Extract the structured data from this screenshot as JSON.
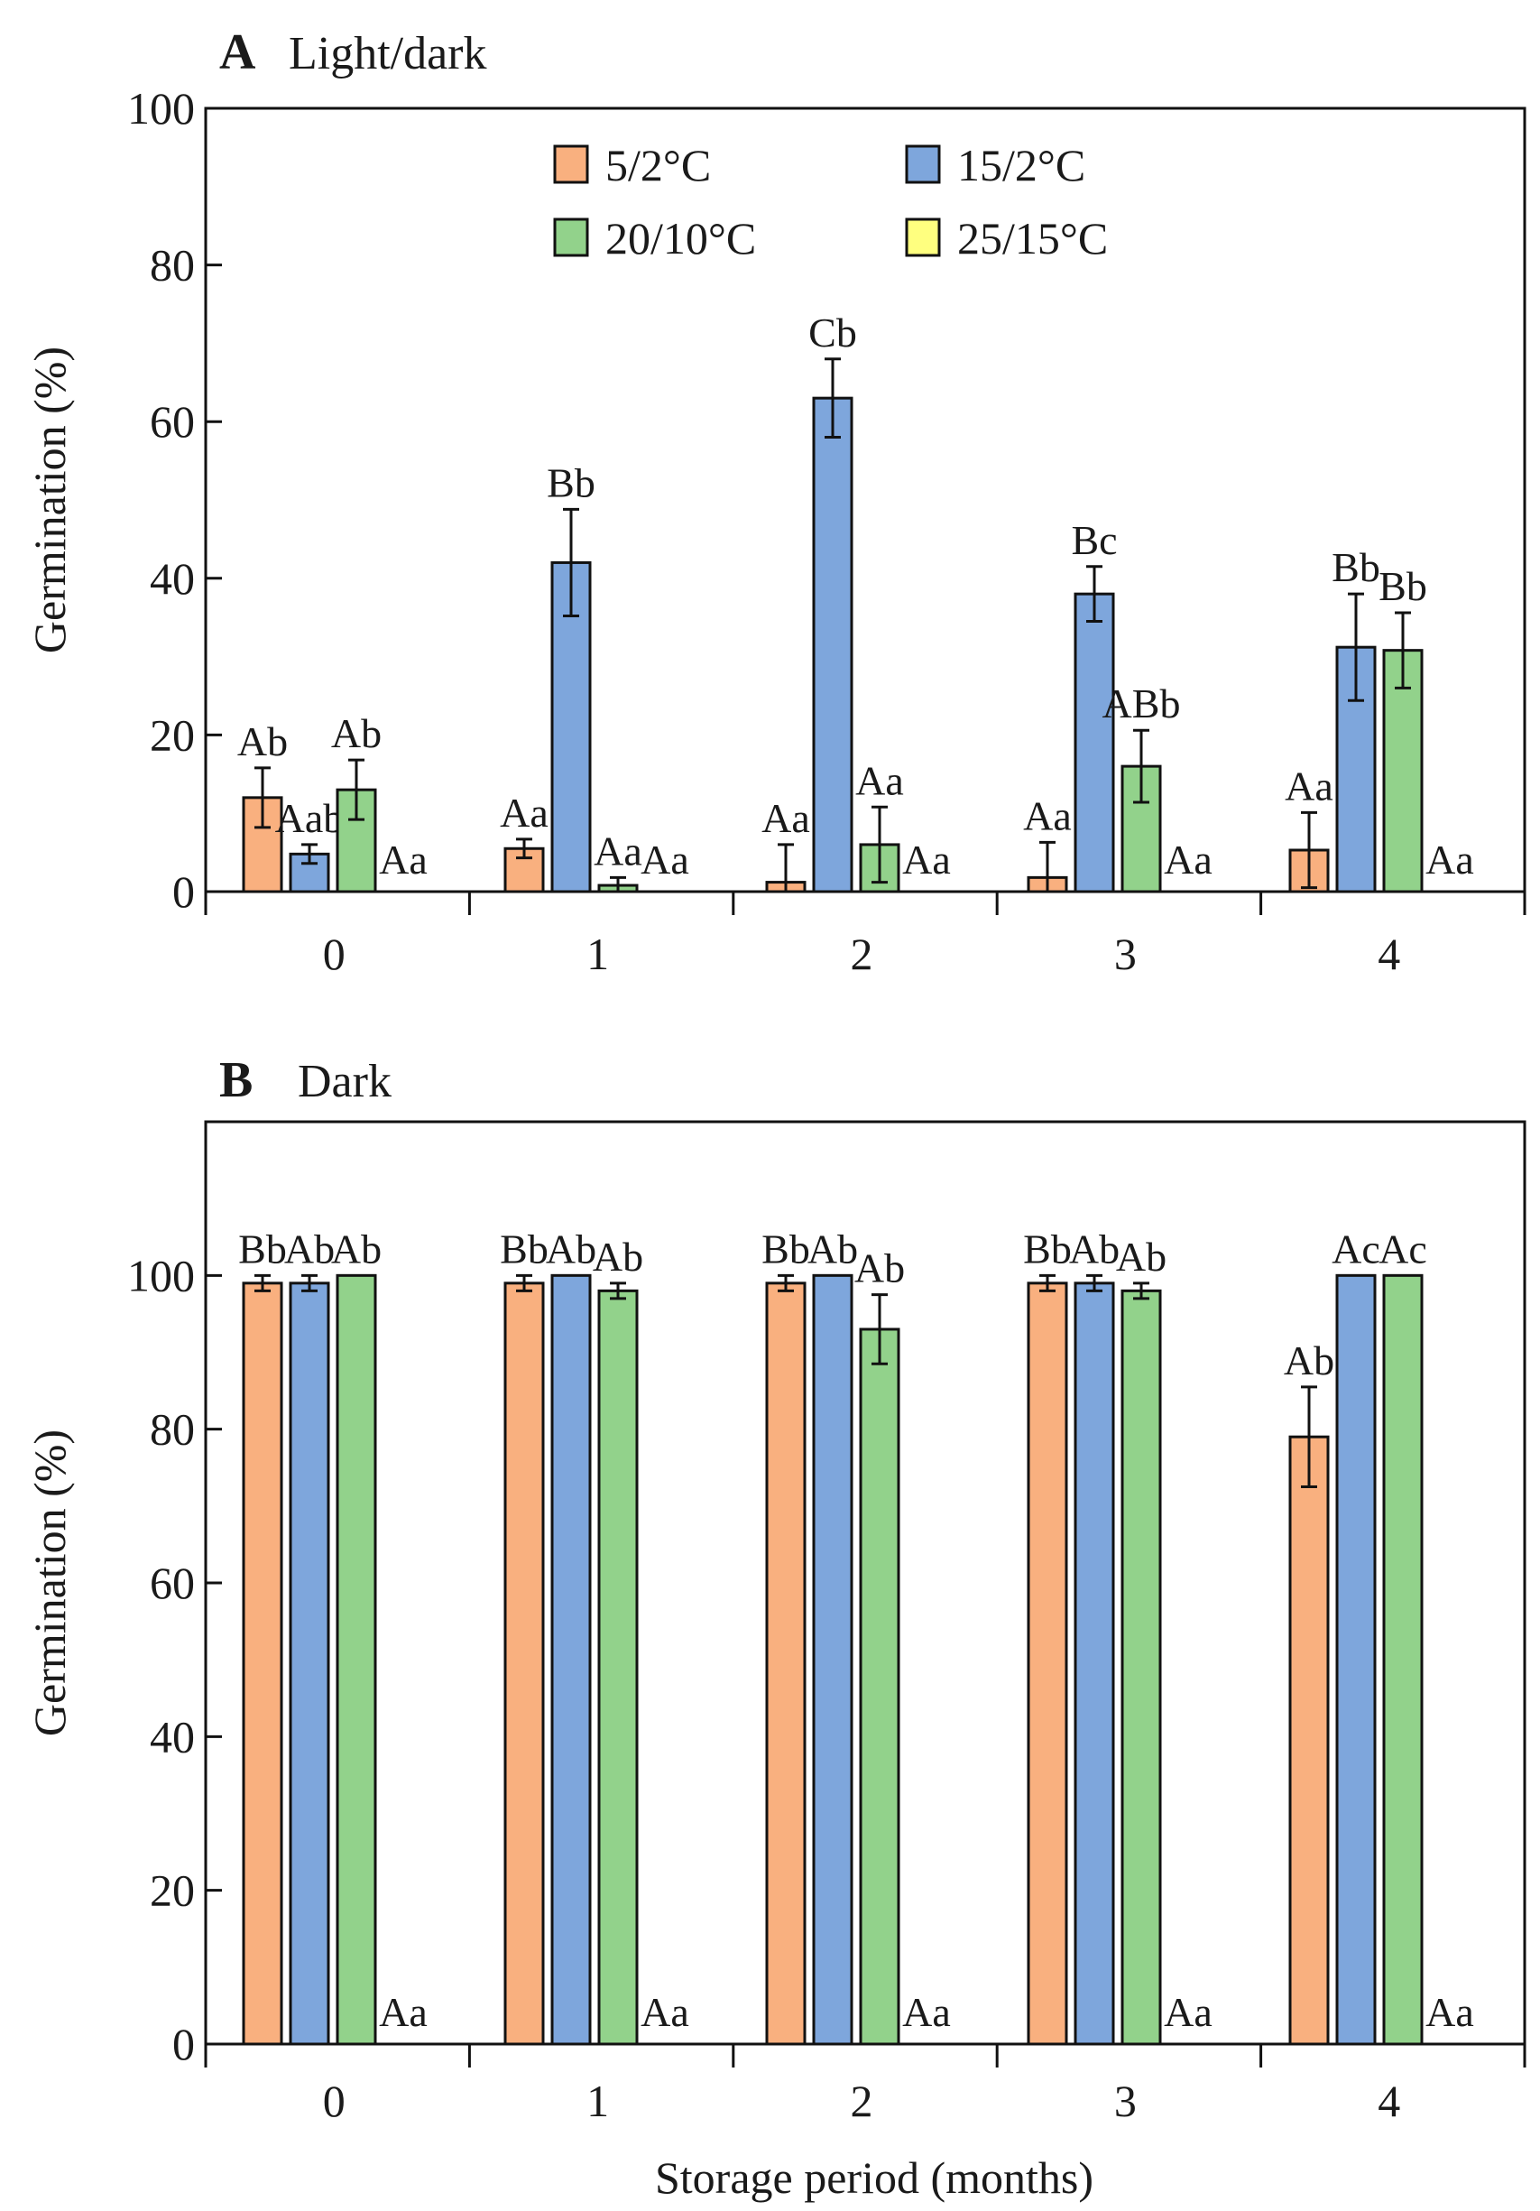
{
  "chart_data": [
    {
      "id": "panel-a",
      "type": "bar",
      "panel_letter": "A",
      "title": "Light/dark",
      "xlabel": "",
      "ylabel": "Germination (%)",
      "ylim": [
        0,
        100
      ],
      "yticks": [
        0,
        20,
        40,
        60,
        80,
        100
      ],
      "categories": [
        "0",
        "1",
        "2",
        "3",
        "4"
      ],
      "legend": {
        "placement": "top-center",
        "columns": 2
      },
      "series": [
        {
          "name": "5/2°C",
          "color": "#f9b07f",
          "values": [
            12,
            5.5,
            1.2,
            1.8,
            5.3
          ],
          "errors": [
            3.8,
            1.2,
            4.8,
            4.5,
            4.8
          ],
          "labels": [
            "Ab",
            "Aa",
            "Aa",
            "Aa",
            "Aa"
          ]
        },
        {
          "name": "15/2°C",
          "color": "#7ea6dc",
          "values": [
            4.8,
            42,
            63,
            38,
            31.2
          ],
          "errors": [
            1.2,
            6.8,
            5,
            3.5,
            6.8
          ],
          "labels": [
            "Aab",
            "Bb",
            "Cb",
            "Bc",
            "Bb"
          ]
        },
        {
          "name": "20/10°C",
          "color": "#92d28b",
          "values": [
            13,
            0.8,
            6,
            16,
            30.8
          ],
          "errors": [
            3.8,
            1,
            4.8,
            4.6,
            4.8
          ],
          "labels": [
            "Ab",
            "Aa",
            "Aa",
            "ABb",
            "Bb"
          ]
        },
        {
          "name": "25/15°C",
          "color": "#ffff7f",
          "values": [
            0,
            0,
            0,
            0,
            0
          ],
          "errors": [
            0,
            0,
            0,
            0,
            0
          ],
          "labels": [
            "Aa",
            "Aa",
            "Aa",
            "Aa",
            "Aa"
          ]
        }
      ]
    },
    {
      "id": "panel-b",
      "type": "bar",
      "panel_letter": "B",
      "title": "Dark",
      "xlabel": "Storage period (months)",
      "ylabel": "Germination (%)",
      "ylim": [
        0,
        120
      ],
      "yticks": [
        0,
        20,
        40,
        60,
        80,
        100
      ],
      "categories": [
        "0",
        "1",
        "2",
        "3",
        "4"
      ],
      "series": [
        {
          "name": "5/2°C",
          "color": "#f9b07f",
          "values": [
            99,
            99,
            99,
            99,
            79
          ],
          "errors": [
            1,
            1,
            1,
            1,
            6.5
          ],
          "labels": [
            "Bb",
            "Bb",
            "Bb",
            "Bb",
            "Ab"
          ]
        },
        {
          "name": "15/2°C",
          "color": "#7ea6dc",
          "values": [
            99,
            100,
            100,
            99,
            100
          ],
          "errors": [
            1,
            0,
            0,
            1,
            0
          ],
          "labels": [
            "Ab",
            "Ab",
            "Ab",
            "Ab",
            "Ac"
          ]
        },
        {
          "name": "20/10°C",
          "color": "#92d28b",
          "values": [
            100,
            98,
            93,
            98,
            100
          ],
          "errors": [
            0,
            1,
            4.5,
            1,
            0
          ],
          "labels": [
            "Ab",
            "Ab",
            "Ab",
            "Ab",
            "Ac"
          ]
        },
        {
          "name": "25/15°C",
          "color": "#ffff7f",
          "values": [
            0,
            0,
            0,
            0,
            0
          ],
          "errors": [
            0,
            0,
            0,
            0,
            0
          ],
          "labels": [
            "Aa",
            "Aa",
            "Aa",
            "Aa",
            "Aa"
          ]
        }
      ]
    }
  ]
}
